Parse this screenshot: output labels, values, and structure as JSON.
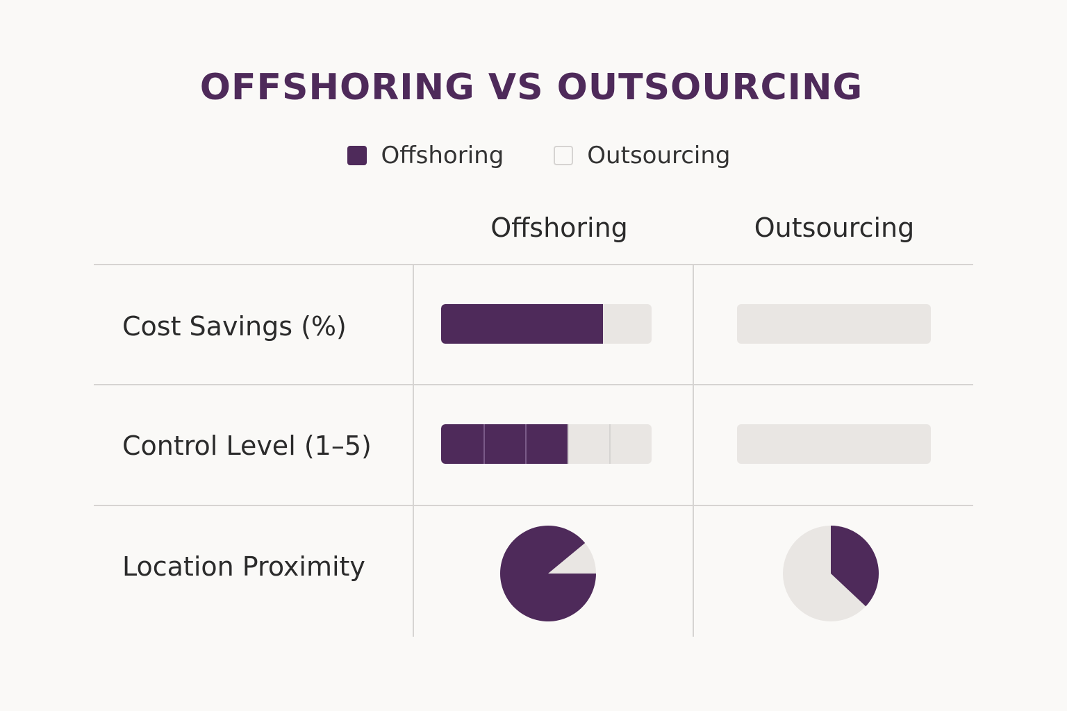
{
  "colors": {
    "offshoring": "#4e2a5a",
    "outsourcing": "#e9e6e3",
    "grid": "#d6d4d2"
  },
  "chart_data": {
    "type": "table",
    "title": "OFFSHORING VS OUTSOURCING",
    "legend": [
      {
        "label": "Offshoring",
        "color": "#4e2a5a"
      },
      {
        "label": "Outsourcing",
        "color": "#e9e6e3"
      }
    ],
    "columns": [
      "Offshoring",
      "Outsourcing"
    ],
    "rows": [
      {
        "label": "Cost Savings (%)",
        "kind": "bar",
        "values": [
          77,
          0
        ],
        "max": 100
      },
      {
        "label": "Control Level (1–5)",
        "kind": "segmented-bar",
        "values": [
          3,
          0
        ],
        "max": 5
      },
      {
        "label": "Location Proximity",
        "kind": "pie",
        "values": [
          89,
          37
        ],
        "max": 100
      }
    ]
  }
}
